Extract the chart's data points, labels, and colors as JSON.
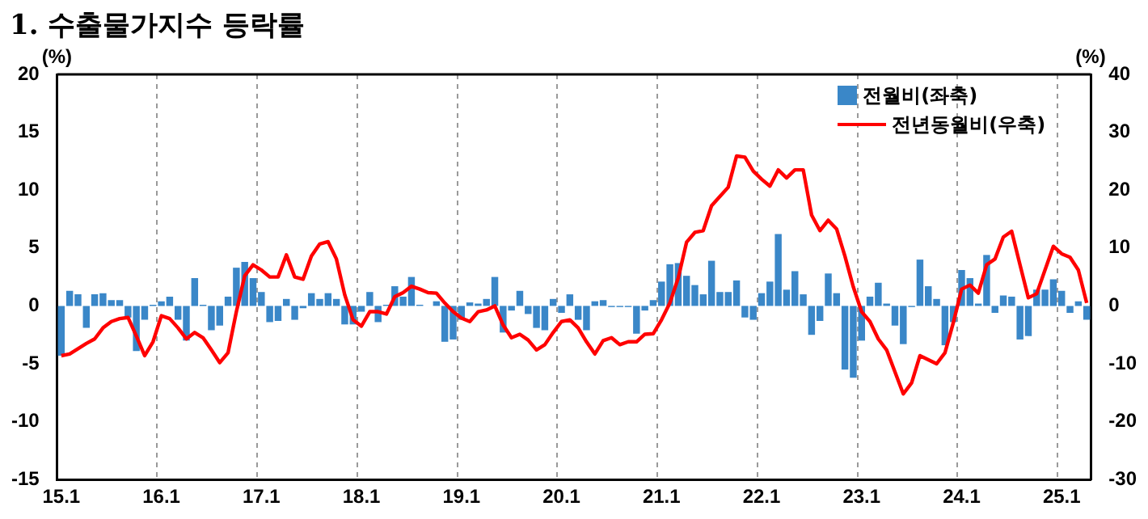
{
  "chart_data": {
    "type": "bar",
    "title": "1. 수출물가지수 등락률",
    "ylabel": "(%)",
    "y2label": "(%)",
    "categories": [
      "15.1",
      null,
      null,
      null,
      null,
      null,
      null,
      null,
      null,
      null,
      null,
      null,
      "16.1",
      null,
      null,
      null,
      null,
      null,
      null,
      null,
      null,
      null,
      null,
      null,
      "17.1",
      null,
      null,
      null,
      null,
      null,
      null,
      null,
      null,
      null,
      null,
      null,
      "18.1",
      null,
      null,
      null,
      null,
      null,
      null,
      null,
      null,
      null,
      null,
      null,
      "19.1",
      null,
      null,
      null,
      null,
      null,
      null,
      null,
      null,
      null,
      null,
      null,
      "20.1",
      null,
      null,
      null,
      null,
      null,
      null,
      null,
      null,
      null,
      null,
      null,
      "21.1",
      null,
      null,
      null,
      null,
      null,
      null,
      null,
      null,
      null,
      null,
      null,
      "22.1",
      null,
      null,
      null,
      null,
      null,
      null,
      null,
      null,
      null,
      null,
      null,
      "23.1",
      null,
      null,
      null,
      null,
      null,
      null,
      null,
      null,
      null,
      null,
      null,
      "24.1",
      null,
      null,
      null,
      null,
      null,
      null,
      null,
      null,
      null,
      null,
      null,
      "25.1",
      null,
      null,
      null
    ],
    "series": [
      {
        "name": "전월비(좌축)",
        "color": "#3a87c8",
        "values": [
          -4.3,
          1.3,
          1.0,
          -1.9,
          1.0,
          1.1,
          0.5,
          0.5,
          -1.0,
          -3.9,
          -1.2,
          0.1,
          0.4,
          0.8,
          -1.2,
          -3.0,
          2.4,
          0.1,
          -2.1,
          -1.7,
          0.8,
          3.3,
          3.8,
          2.4,
          1.2,
          -1.4,
          -1.3,
          0.6,
          -1.2,
          -0.2,
          1.1,
          0.6,
          1.1,
          0.6,
          -1.6,
          -1.6,
          -0.5,
          1.2,
          -1.4,
          0.1,
          1.7,
          0.8,
          2.5,
          0.1,
          0.0,
          0.4,
          -3.1,
          -2.9,
          -1.2,
          0.3,
          0.2,
          0.6,
          2.5,
          -2.3,
          -0.4,
          1.3,
          -0.7,
          -1.9,
          -2.1,
          0.6,
          -0.6,
          1.0,
          -1.2,
          -2.1,
          0.4,
          0.5,
          -0.1,
          -0.1,
          -0.1,
          -2.4,
          -0.4,
          0.5,
          2.1,
          3.6,
          3.7,
          2.6,
          1.8,
          1.0,
          3.9,
          1.2,
          1.2,
          2.2,
          -1.0,
          -1.2,
          1.1,
          2.1,
          6.2,
          1.4,
          3.0,
          1.0,
          -2.5,
          -1.3,
          2.8,
          1.1,
          -5.5,
          -6.2,
          -3.0,
          0.8,
          2.0,
          0.2,
          -1.7,
          -3.3,
          -0.1,
          4.0,
          1.7,
          0.6,
          -3.4,
          -1.4,
          3.1,
          2.4,
          0.2,
          4.4,
          -0.6,
          0.9,
          0.8,
          -2.9,
          -2.6,
          1.4,
          1.4,
          2.3,
          1.3,
          -0.6,
          0.4,
          -1.2
        ]
      },
      {
        "name": "전년동월비(우축)",
        "type": "line",
        "axis": "y2",
        "color": "#ff0000",
        "values": [
          -8.6,
          -8.3,
          -7.4,
          -6.5,
          -5.7,
          -3.8,
          -2.7,
          -2.2,
          -2.0,
          -5.2,
          -8.6,
          -6.2,
          -1.7,
          -2.2,
          -3.8,
          -5.7,
          -4.6,
          -5.5,
          -7.6,
          -9.8,
          -8.1,
          -1.0,
          5.2,
          7.1,
          6.2,
          5.0,
          5.0,
          8.8,
          5.0,
          4.6,
          8.6,
          10.7,
          11.1,
          8.1,
          1.9,
          -2.4,
          -3.5,
          -1.0,
          -1.0,
          -1.4,
          1.6,
          2.3,
          3.4,
          2.9,
          2.3,
          2.2,
          0.5,
          -1.0,
          -2.1,
          -2.7,
          -1.0,
          -0.7,
          0.0,
          -3.3,
          -5.5,
          -4.9,
          -5.9,
          -7.6,
          -6.7,
          -4.6,
          -2.7,
          -2.4,
          -3.8,
          -6.2,
          -8.3,
          -6.0,
          -5.5,
          -6.7,
          -6.2,
          -6.2,
          -4.9,
          -4.8,
          -2.4,
          0.5,
          4.8,
          11.0,
          12.7,
          13.0,
          17.3,
          18.9,
          20.5,
          25.9,
          25.7,
          23.3,
          21.9,
          20.7,
          23.5,
          22.1,
          23.5,
          23.5,
          15.7,
          13.0,
          14.8,
          13.3,
          8.6,
          3.3,
          -1.0,
          -2.7,
          -5.7,
          -7.6,
          -11.4,
          -15.2,
          -13.3,
          -8.6,
          -9.3,
          -10.0,
          -8.1,
          -2.9,
          2.9,
          3.6,
          2.2,
          7.1,
          8.1,
          11.9,
          12.9,
          7.1,
          1.4,
          2.1,
          6.2,
          10.3,
          9.0,
          8.4,
          6.2,
          0.5
        ]
      }
    ],
    "ylim": [
      -15,
      20
    ],
    "yticks": [
      -15,
      -10,
      -5,
      0,
      5,
      10,
      15,
      20
    ],
    "y2lim": [
      -30,
      40
    ],
    "y2ticks": [
      -30,
      -20,
      -10,
      0,
      10,
      20,
      30,
      40
    ],
    "grid": "x",
    "legend": "top right",
    "line_style": "solid",
    "marker": "none"
  }
}
